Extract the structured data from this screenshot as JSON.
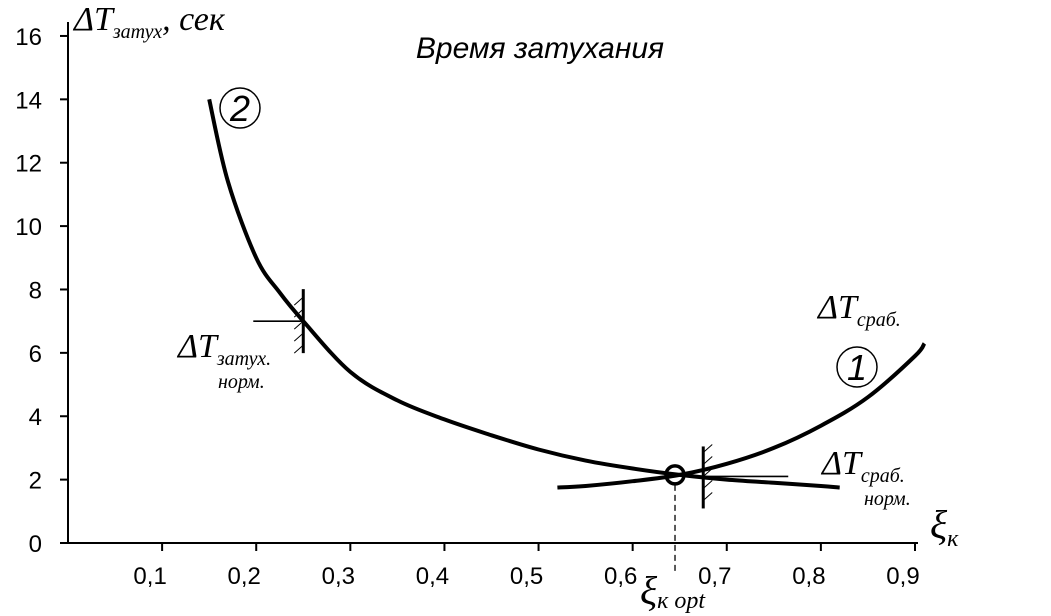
{
  "chart_data": {
    "type": "line",
    "title": "Время затухания",
    "ylabel": {
      "delta": "ΔT",
      "sub": "затух",
      "unit": ", сек"
    },
    "xlabel": {
      "main": "ξ",
      "sub": "к"
    },
    "xlim": [
      0.0,
      0.9
    ],
    "ylim": [
      0,
      16
    ],
    "x_ticks": [
      "0,1",
      "0,2",
      "0,3",
      "0,4",
      "0,5",
      "0,6",
      "0,7",
      "0,8",
      "0,9"
    ],
    "x_tick_values": [
      0.1,
      0.2,
      0.3,
      0.4,
      0.5,
      0.6,
      0.7,
      0.8,
      0.9
    ],
    "y_ticks": [
      "0",
      "2",
      "4",
      "6",
      "8",
      "10",
      "12",
      "14",
      "16"
    ],
    "y_tick_values": [
      0,
      2,
      4,
      6,
      8,
      10,
      12,
      14,
      16
    ],
    "grid": false,
    "series": [
      {
        "marker": "2",
        "label": {
          "delta": "ΔT",
          "sub": "затух.",
          "sub2": "норм."
        },
        "x": [
          0.15,
          0.17,
          0.2,
          0.225,
          0.25,
          0.3,
          0.35,
          0.4,
          0.45,
          0.5,
          0.55,
          0.6,
          0.65,
          0.7,
          0.75,
          0.8,
          0.82
        ],
        "y": [
          14.0,
          11.4,
          9.0,
          7.9,
          7.0,
          5.4,
          4.5,
          3.9,
          3.4,
          2.95,
          2.6,
          2.35,
          2.15,
          2.0,
          1.9,
          1.8,
          1.75
        ]
      },
      {
        "marker": "1",
        "label": {
          "delta": "ΔT",
          "sub": "сраб.",
          "sub2": "норм."
        },
        "curve_label": {
          "delta": "ΔT",
          "sub": "сраб."
        },
        "x": [
          0.52,
          0.55,
          0.6,
          0.65,
          0.7,
          0.75,
          0.8,
          0.85,
          0.9,
          0.91
        ],
        "y": [
          1.75,
          1.8,
          1.95,
          2.15,
          2.5,
          3.0,
          3.7,
          4.6,
          5.9,
          6.3
        ]
      }
    ],
    "optimum": {
      "x": 0.645,
      "y": 2.15,
      "label": {
        "main": "ξ",
        "sub": "к opt"
      }
    },
    "norm_marks": [
      {
        "series": "2",
        "x": 0.25,
        "y": 7.0
      },
      {
        "series": "1",
        "x": 0.675,
        "y": 2.1
      }
    ]
  }
}
